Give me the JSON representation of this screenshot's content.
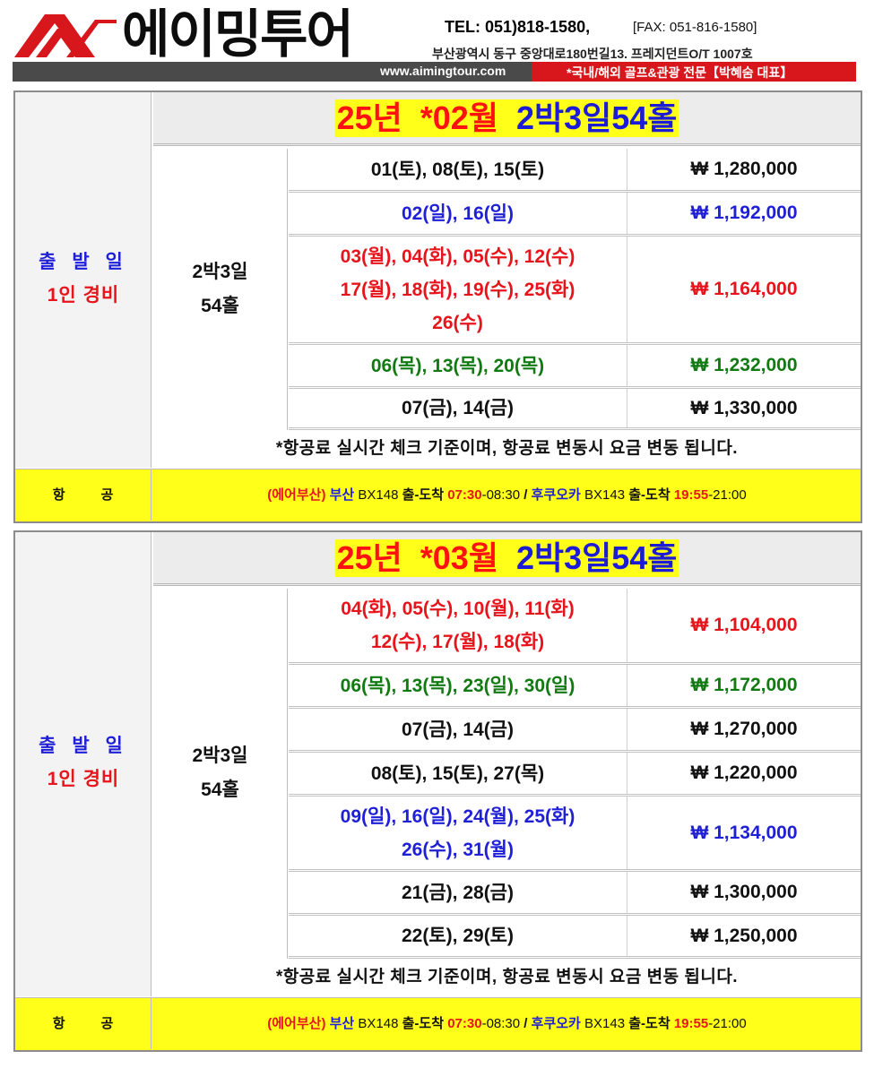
{
  "header": {
    "brand": "에이밍투어",
    "tel": "TEL:  051)818-1580,",
    "fax": "[FAX:  051-816-1580]",
    "address": "부산광역시 동구 중앙대로180번길13. 프레지던트O/T 1007호",
    "url": "www.aimingtour.com",
    "slogan": "*국내/해외 골프&관광 전문【박혜숨 대표】",
    "colors": {
      "accent_red": "#d8171c",
      "bar_dark": "#4a4a4a",
      "highlight_yellow": "#ffff1a"
    }
  },
  "blocks": [
    {
      "left_label_1": "출 발 일",
      "left_label_2": "1인 경비",
      "title_year": "25년",
      "title_month": "*02월",
      "title_product": "2박3일54홀",
      "schedule_line1": "2박3일",
      "schedule_line2": "54홀",
      "rows": [
        {
          "dates": "01(토),  08(토),  15(토)",
          "price": "₩  1,280,000",
          "color": "black"
        },
        {
          "dates": "02(일),  16(일)",
          "price": "₩  1,192,000",
          "color": "blue"
        },
        {
          "dates_lines": [
            "03(월),  04(화),  05(수),  12(수)",
            "17(월),  18(화),  19(수),  25(화)",
            "26(수)"
          ],
          "price": "₩  1,164,000",
          "color": "red"
        },
        {
          "dates": "06(목),  13(목),  20(목)",
          "price": "₩  1,232,000",
          "color": "green"
        },
        {
          "dates": "07(금),  14(금)",
          "price": "₩  1,330,000",
          "color": "black"
        }
      ],
      "note": "*항공료 실시간 체크 기준이며, 항공료 변동시 요금 변동 됩니다.",
      "flight": {
        "label_1": "항",
        "label_2": "공",
        "airline": "(에어부산)",
        "dep_city": "부산",
        "dep_flight": "BX148",
        "dep_type": "출-도착",
        "dep_time": "07:30",
        "dep_arrive": "-08:30",
        "separator": "/",
        "ret_city": "후쿠오카",
        "ret_flight": "BX143",
        "ret_type": "출-도착",
        "ret_time": "19:55",
        "ret_arrive": "-21:00"
      }
    },
    {
      "left_label_1": "출 발 일",
      "left_label_2": "1인 경비",
      "title_year": "25년",
      "title_month": "*03월",
      "title_product": "2박3일54홀",
      "schedule_line1": "2박3일",
      "schedule_line2": "54홀",
      "rows": [
        {
          "dates_lines": [
            "04(화),  05(수),  10(월),  11(화)",
            "12(수),  17(월),  18(화)"
          ],
          "price": "₩  1,104,000",
          "color": "red"
        },
        {
          "dates": "06(목),  13(목),  23(일),  30(일)",
          "price": "₩  1,172,000",
          "color": "green"
        },
        {
          "dates": "07(금),  14(금)",
          "price": "₩  1,270,000",
          "color": "black"
        },
        {
          "dates": "08(토),  15(토),  27(목)",
          "price": "₩  1,220,000",
          "color": "black"
        },
        {
          "dates_lines": [
            "09(일),  16(일),  24(월),  25(화)",
            "26(수),  31(월)"
          ],
          "price": "₩  1,134,000",
          "color": "blue"
        },
        {
          "dates": "21(금),  28(금)",
          "price": "₩  1,300,000",
          "color": "black"
        },
        {
          "dates": "22(토),  29(토)",
          "price": "₩  1,250,000",
          "color": "black"
        }
      ],
      "note": "*항공료 실시간 체크 기준이며, 항공료 변동시 요금 변동 됩니다.",
      "flight": {
        "label_1": "항",
        "label_2": "공",
        "airline": "(에어부산)",
        "dep_city": "부산",
        "dep_flight": "BX148",
        "dep_type": "출-도착",
        "dep_time": "07:30",
        "dep_arrive": "-08:30",
        "separator": "/",
        "ret_city": "후쿠오카",
        "ret_flight": "BX143",
        "ret_type": "출-도착",
        "ret_time": "19:55",
        "ret_arrive": "-21:00"
      }
    }
  ]
}
